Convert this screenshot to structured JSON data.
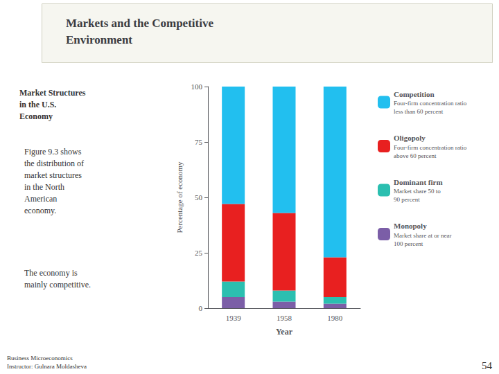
{
  "chart_data": {
    "type": "bar",
    "stacked": true,
    "title": "Markets and the Competitive\nEnvironment",
    "subtitle": "Market Structures\nin the U.S.\nEconomy",
    "xlabel": "Year",
    "ylabel": "Percentage of economy",
    "categories": [
      "1939",
      "1958",
      "1980"
    ],
    "series": [
      {
        "name": "Monopoly",
        "color": "#7B5EA7",
        "values": [
          5,
          3,
          2
        ]
      },
      {
        "name": "Dominant firm",
        "color": "#2BBFB0",
        "values": [
          7,
          5,
          3
        ]
      },
      {
        "name": "Oligopoly",
        "color": "#E82020",
        "values": [
          35,
          35,
          18
        ]
      },
      {
        "name": "Competition",
        "color": "#22BFEF",
        "values": [
          53,
          57,
          77
        ]
      }
    ],
    "ylim": [
      0,
      100
    ],
    "yticks": [
      0,
      25,
      50,
      75,
      100
    ],
    "grid": false,
    "legend": "right",
    "annotations": [
      "Figure 9.3 shows\nthe distribution of\nmarket structures\nin the North\nAmerican\neconomy.",
      "The economy is\nmainly competitive.",
      "Four-firm concentration ratio\nless than 60 percent",
      "Four-firm concentration ratio\nabove 60 percent",
      "Market share 50 to\n90 percent",
      "Market share at or near\n100 percent",
      "Business Microeconomics\nInstructor: Gulnara Moldasheva",
      "54"
    ]
  }
}
